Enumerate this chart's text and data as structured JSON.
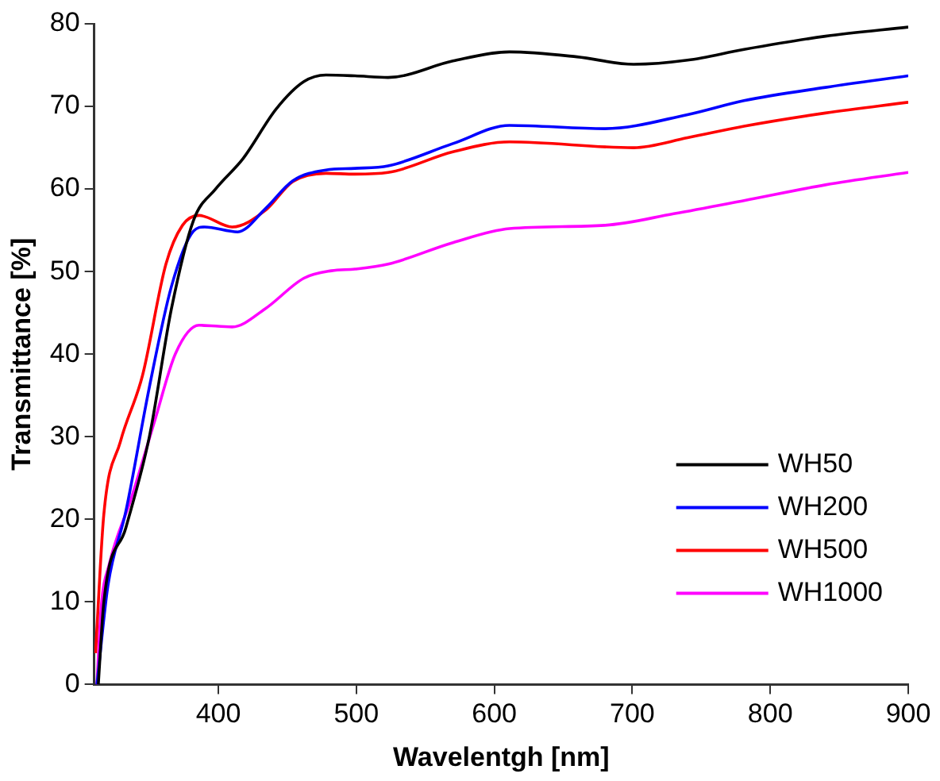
{
  "chart_data": {
    "type": "line",
    "xlabel": "Wavelentgh [nm]",
    "ylabel": "Transmittance [%]",
    "xlim": [
      310,
      900
    ],
    "xticks": [
      400,
      500,
      600,
      700,
      800,
      900
    ],
    "ylim": [
      0,
      80
    ],
    "yticks": [
      0,
      10,
      20,
      30,
      40,
      50,
      60,
      70,
      80
    ],
    "grid": false,
    "legend": "bottom right",
    "marker": "none",
    "line_style": "solid",
    "series": [
      {
        "name": "WH50",
        "color": "#000000",
        "x": [
          313,
          317,
          333,
          350,
          366,
          382,
          398,
          418,
          442,
          462,
          478,
          499,
          523,
          570,
          611,
          660,
          701,
          740,
          781,
          840,
          900
        ],
        "values": [
          0,
          10,
          19,
          30,
          45.5,
          56.2,
          60,
          63.7,
          69.7,
          73,
          73.8,
          73.7,
          73.5,
          75.5,
          76.6,
          76,
          75.1,
          75.6,
          76.9,
          78.5,
          79.6
        ]
      },
      {
        "name": "WH200",
        "color": "#0000ff",
        "x": [
          312,
          320,
          333,
          350,
          366,
          382,
          390,
          414,
          434,
          454,
          478,
          499,
          523,
          570,
          611,
          680,
          740,
          781,
          840,
          900
        ],
        "values": [
          0,
          12,
          21,
          36,
          48.2,
          54.9,
          55.4,
          54.8,
          57.6,
          61,
          62.3,
          62.5,
          62.8,
          65.5,
          67.7,
          67.3,
          69,
          70.7,
          72.3,
          73.7
        ]
      },
      {
        "name": "WH500",
        "color": "#ff0000",
        "x": [
          311,
          317,
          329,
          345,
          362,
          374,
          386,
          410,
          434,
          454,
          478,
          499,
          523,
          570,
          611,
          701,
          740,
          781,
          840,
          900
        ],
        "values": [
          3.8,
          20.6,
          29.4,
          37.4,
          50.9,
          55.6,
          56.8,
          55.4,
          57.4,
          60.9,
          61.9,
          61.8,
          62,
          64.5,
          65.7,
          65,
          66.2,
          67.6,
          69.2,
          70.5
        ]
      },
      {
        "name": "WH1000",
        "color": "#ff00ff",
        "x": [
          312,
          315,
          321,
          337,
          354,
          369,
          386,
          410,
          434,
          462,
          482,
          499,
          523,
          570,
          611,
          680,
          730,
          781,
          840,
          900
        ],
        "values": [
          0,
          9.2,
          14.6,
          22.6,
          32,
          40.1,
          43.5,
          43.3,
          45.5,
          49.2,
          50.1,
          50.3,
          50.9,
          53.5,
          55.2,
          55.6,
          57,
          58.6,
          60.5,
          62
        ]
      }
    ]
  }
}
